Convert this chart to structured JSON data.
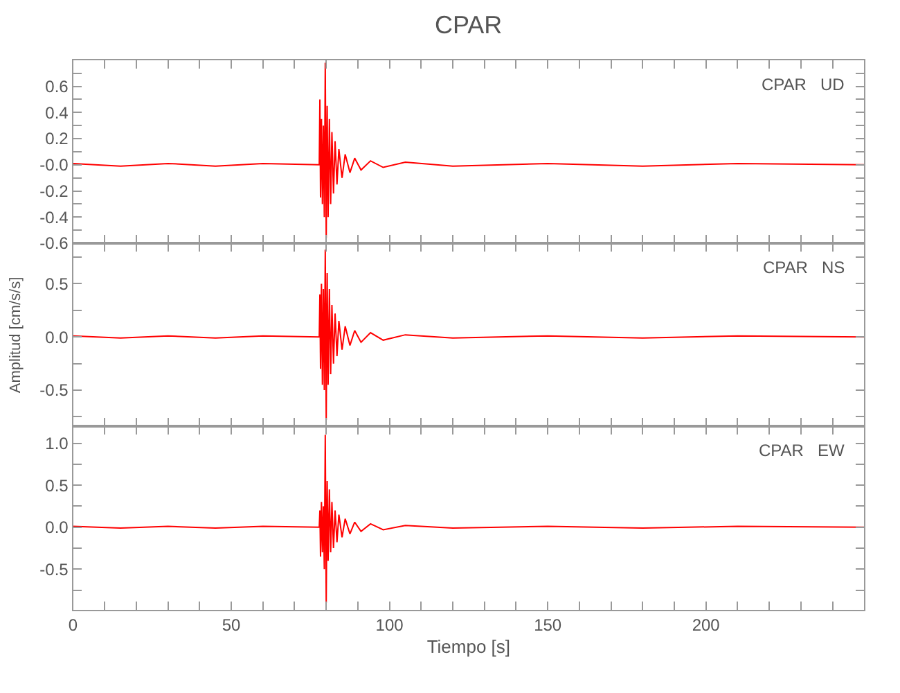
{
  "chart_data": [
    {
      "type": "line",
      "title": "CPAR",
      "annotations": [
        "CPAR   UD"
      ],
      "tick_labels": "y",
      "grid": false,
      "line_style": "solid",
      "marker": "none",
      "x": [
        0,
        15,
        30,
        45,
        60,
        77.8,
        78.0,
        78.2,
        78.5,
        78.8,
        79.1,
        79.4,
        79.7,
        80.0,
        80.3,
        80.6,
        81.0,
        81.4,
        81.8,
        82.3,
        82.8,
        83.4,
        84.0,
        85.0,
        86.0,
        87.5,
        89,
        91,
        94,
        98,
        105,
        120,
        150,
        180,
        210,
        250
      ],
      "series": [
        {
          "color": "#ff0000",
          "values": [
            0.01,
            -0.01,
            0.01,
            -0.01,
            0.01,
            0.0,
            0.5,
            -0.25,
            0.35,
            -0.3,
            0.3,
            -0.4,
            0.78,
            -0.56,
            0.45,
            -0.4,
            0.35,
            -0.3,
            0.25,
            -0.22,
            0.18,
            -0.15,
            0.12,
            -0.1,
            0.08,
            -0.06,
            0.05,
            -0.04,
            0.03,
            -0.02,
            0.02,
            -0.01,
            0.01,
            -0.01,
            0.01,
            0.0
          ]
        }
      ],
      "xlim": [
        0,
        250
      ],
      "xticks": [
        0,
        {
          "value": 10,
          "label": null
        },
        {
          "value": 20,
          "label": null
        },
        {
          "value": 30,
          "label": null
        },
        {
          "value": 40,
          "label": null
        },
        50,
        {
          "value": 60,
          "label": null
        },
        {
          "value": 70,
          "label": null
        },
        {
          "value": 80,
          "label": null
        },
        {
          "value": 90,
          "label": null
        },
        100,
        {
          "value": 110,
          "label": null
        },
        {
          "value": 120,
          "label": null
        },
        {
          "value": 130,
          "label": null
        },
        {
          "value": 140,
          "label": null
        },
        150,
        {
          "value": 160,
          "label": null
        },
        {
          "value": 170,
          "label": null
        },
        {
          "value": 180,
          "label": null
        },
        {
          "value": 190,
          "label": null
        },
        200,
        {
          "value": 210,
          "label": null
        },
        {
          "value": 220,
          "label": null
        },
        {
          "value": 230,
          "label": null
        },
        {
          "value": 240,
          "label": null
        }
      ],
      "ylim": [
        -0.6,
        0.8
      ],
      "yticks": [
        {
          "value": -0.6,
          "label": "-0.6"
        },
        {
          "value": -0.5,
          "label": null
        },
        {
          "value": -0.4,
          "label": "-0.4"
        },
        {
          "value": -0.3,
          "label": null
        },
        {
          "value": -0.2,
          "label": "-0.2"
        },
        {
          "value": -0.1,
          "label": null
        },
        {
          "value": 0,
          "label": "-0.0"
        },
        {
          "value": 0.1,
          "label": null
        },
        {
          "value": 0.2,
          "label": "0.2"
        },
        {
          "value": 0.3,
          "label": null
        },
        {
          "value": 0.4,
          "label": "0.4"
        },
        {
          "value": 0.5,
          "label": null
        },
        {
          "value": 0.6,
          "label": "0.6"
        },
        {
          "value": 0.7,
          "label": null
        }
      ]
    },
    {
      "type": "line",
      "ylabel": "Amplitud [cm/s/s]",
      "annotations": [
        "CPAR   NS"
      ],
      "tick_labels": "y",
      "grid": false,
      "line_style": "solid",
      "marker": "none",
      "x": [
        0,
        15,
        30,
        45,
        60,
        77.8,
        78.0,
        78.2,
        78.5,
        78.8,
        79.1,
        79.4,
        79.7,
        80.0,
        80.3,
        80.6,
        81.0,
        81.4,
        81.8,
        82.3,
        82.8,
        83.4,
        84.0,
        85.0,
        86.0,
        87.5,
        89,
        91,
        94,
        98,
        105,
        120,
        150,
        180,
        210,
        250
      ],
      "series": [
        {
          "color": "#ff0000",
          "values": [
            0.01,
            -0.01,
            0.01,
            -0.01,
            0.01,
            0.0,
            0.4,
            -0.3,
            0.5,
            -0.45,
            0.45,
            -0.5,
            0.82,
            -0.78,
            0.6,
            -0.45,
            0.45,
            -0.35,
            0.3,
            -0.25,
            0.22,
            -0.18,
            0.15,
            -0.12,
            0.1,
            -0.08,
            0.06,
            -0.05,
            0.04,
            -0.03,
            0.02,
            -0.01,
            0.01,
            -0.01,
            0.01,
            0.0
          ]
        }
      ],
      "xlim": [
        0,
        250
      ],
      "xticks": [
        0,
        {
          "value": 10,
          "label": null
        },
        {
          "value": 20,
          "label": null
        },
        {
          "value": 30,
          "label": null
        },
        {
          "value": 40,
          "label": null
        },
        50,
        {
          "value": 60,
          "label": null
        },
        {
          "value": 70,
          "label": null
        },
        {
          "value": 80,
          "label": null
        },
        {
          "value": 90,
          "label": null
        },
        100,
        {
          "value": 110,
          "label": null
        },
        {
          "value": 120,
          "label": null
        },
        {
          "value": 130,
          "label": null
        },
        {
          "value": 140,
          "label": null
        },
        150,
        {
          "value": 160,
          "label": null
        },
        {
          "value": 170,
          "label": null
        },
        {
          "value": 180,
          "label": null
        },
        {
          "value": 190,
          "label": null
        },
        200,
        {
          "value": 210,
          "label": null
        },
        {
          "value": 220,
          "label": null
        },
        {
          "value": 230,
          "label": null
        },
        {
          "value": 240,
          "label": null
        }
      ],
      "ylim": [
        -0.84,
        0.88
      ],
      "yticks": [
        {
          "value": -0.75,
          "label": null
        },
        {
          "value": -0.5,
          "label": "-0.5"
        },
        {
          "value": -0.25,
          "label": null
        },
        {
          "value": 0,
          "label": "0.0"
        },
        {
          "value": 0.25,
          "label": null
        },
        {
          "value": 0.5,
          "label": "0.5"
        },
        {
          "value": 0.75,
          "label": null
        }
      ]
    },
    {
      "type": "line",
      "xlabel": "Tiempo [s]",
      "annotations": [
        "CPAR   EW"
      ],
      "grid": false,
      "line_style": "solid",
      "marker": "none",
      "x": [
        0,
        15,
        30,
        45,
        60,
        77.8,
        78.0,
        78.2,
        78.5,
        78.8,
        79.1,
        79.4,
        79.7,
        80.0,
        80.3,
        80.6,
        81.0,
        81.4,
        81.8,
        82.3,
        82.8,
        83.4,
        84.0,
        85.0,
        86.0,
        87.5,
        89,
        91,
        94,
        98,
        105,
        120,
        150,
        180,
        210,
        250
      ],
      "series": [
        {
          "color": "#ff0000",
          "values": [
            0.01,
            -0.01,
            0.01,
            -0.01,
            0.01,
            0.0,
            0.2,
            -0.35,
            0.3,
            -0.3,
            0.25,
            -0.5,
            1.1,
            -0.9,
            0.55,
            -0.4,
            0.45,
            -0.3,
            0.3,
            -0.25,
            0.2,
            -0.18,
            0.15,
            -0.12,
            0.1,
            -0.08,
            0.06,
            -0.05,
            0.04,
            -0.03,
            0.02,
            -0.01,
            0.01,
            -0.01,
            0.01,
            0.0
          ]
        }
      ],
      "xlim": [
        0,
        250
      ],
      "xticks": [
        0,
        {
          "value": 10,
          "label": null
        },
        {
          "value": 20,
          "label": null
        },
        {
          "value": 30,
          "label": null
        },
        {
          "value": 40,
          "label": null
        },
        50,
        {
          "value": 60,
          "label": null
        },
        {
          "value": 70,
          "label": null
        },
        {
          "value": 80,
          "label": null
        },
        {
          "value": 90,
          "label": null
        },
        100,
        {
          "value": 110,
          "label": null
        },
        {
          "value": 120,
          "label": null
        },
        {
          "value": 130,
          "label": null
        },
        {
          "value": 140,
          "label": null
        },
        150,
        {
          "value": 160,
          "label": null
        },
        {
          "value": 170,
          "label": null
        },
        {
          "value": 180,
          "label": null
        },
        {
          "value": 190,
          "label": null
        },
        200,
        {
          "value": 210,
          "label": null
        },
        {
          "value": 220,
          "label": null
        },
        {
          "value": 230,
          "label": null
        },
        {
          "value": 240,
          "label": null
        }
      ],
      "ylim": [
        -0.98,
        1.2
      ],
      "yticks": [
        {
          "value": -0.75,
          "label": null
        },
        {
          "value": -0.5,
          "label": "-0.5"
        },
        {
          "value": -0.25,
          "label": null
        },
        {
          "value": 0,
          "label": "0.0"
        },
        {
          "value": 0.25,
          "label": null
        },
        {
          "value": 0.5,
          "label": "0.5"
        },
        {
          "value": 0.75,
          "label": null
        },
        {
          "value": 1.0,
          "label": "1.0"
        }
      ]
    }
  ]
}
